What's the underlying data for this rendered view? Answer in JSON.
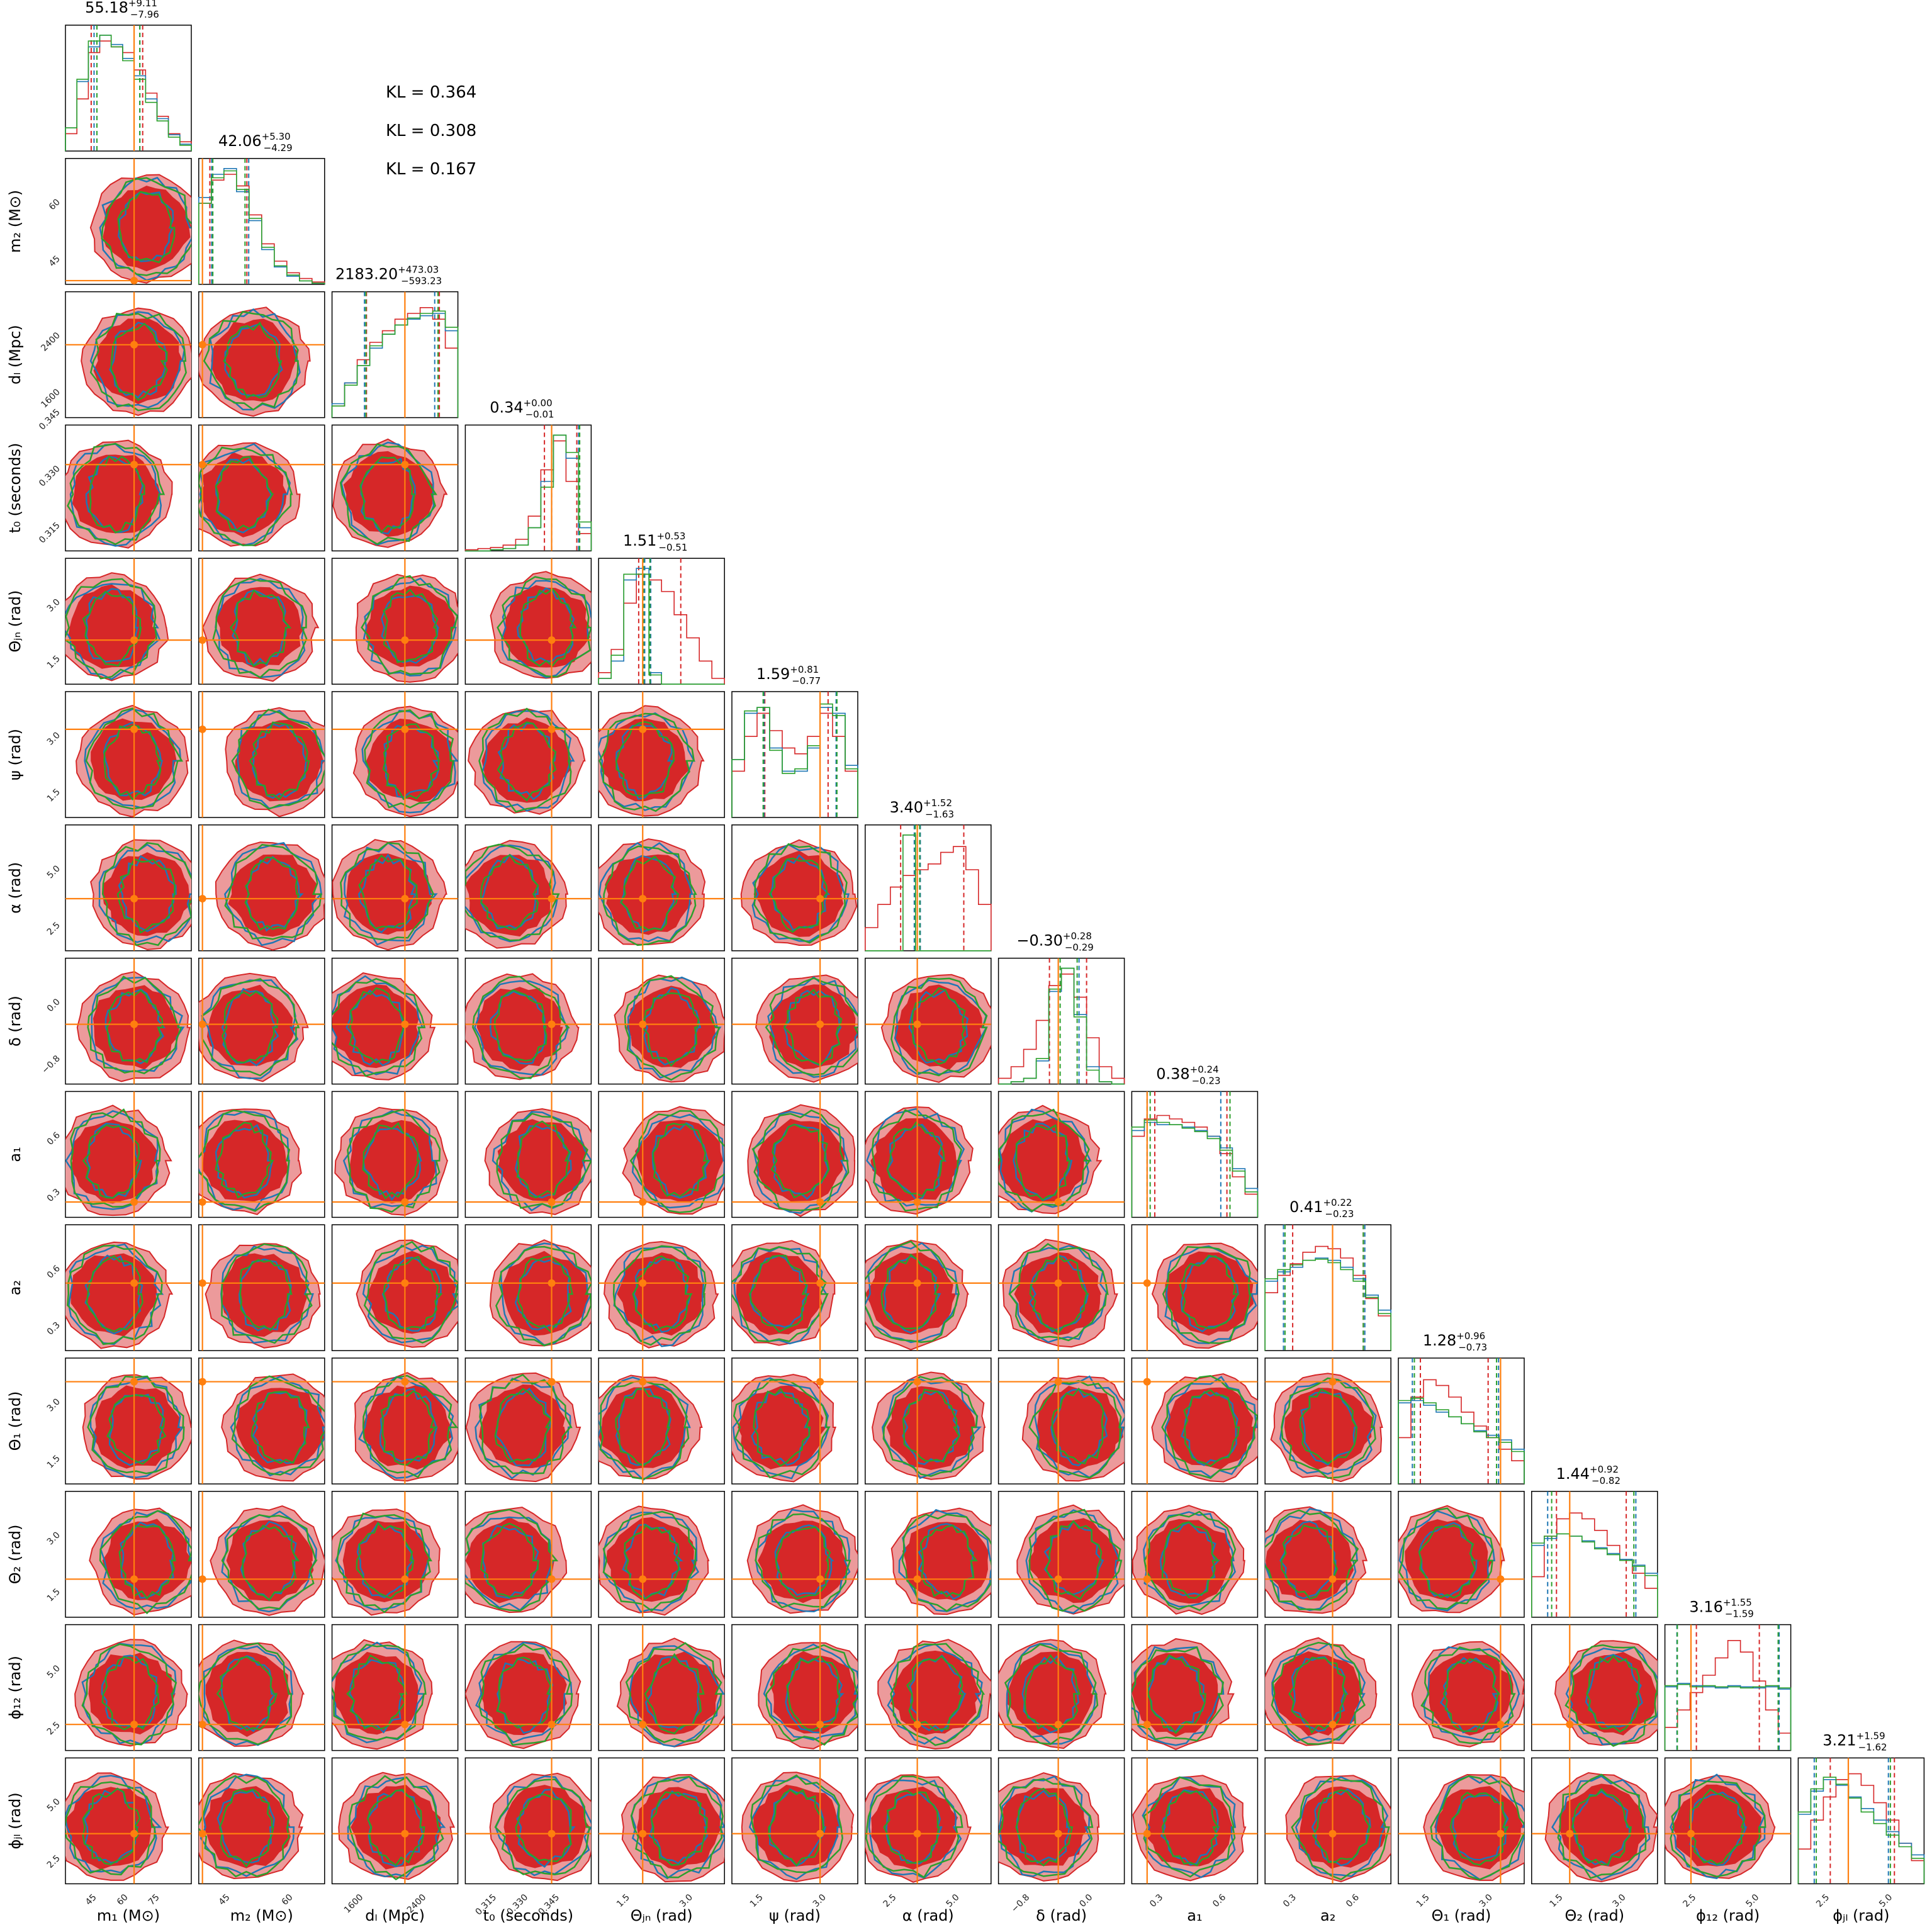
{
  "colors": {
    "red": "#d62728",
    "red_light": "#ec9a9b",
    "blue": "#1f77b4",
    "green": "#2ca02c",
    "orange": "#ff7f0e",
    "frame": "#000000"
  },
  "kl_labels": [
    "KL = 0.364",
    "KL = 0.308",
    "KL = 0.167"
  ],
  "chart_data": {
    "type": "corner",
    "series_colors": [
      "#d62728",
      "#1f77b4",
      "#2ca02c"
    ],
    "truth_color": "#ff7f0e",
    "parameters": [
      {
        "label": "m₁ (M⊙)",
        "left_label": "",
        "title_main": "55.18",
        "title_sup": "+9.11",
        "title_sub": "−7.96",
        "xticks": [
          "45",
          "60",
          "75"
        ],
        "yticks": [],
        "range": [
          38,
          82
        ],
        "truth": 62,
        "hist": {
          "red": [
            0.15,
            0.45,
            0.85,
            0.95,
            0.9,
            0.85,
            0.7,
            0.5,
            0.3,
            0.15,
            0.08
          ],
          "blue": [
            0.2,
            0.6,
            0.9,
            1.0,
            0.92,
            0.8,
            0.65,
            0.45,
            0.28,
            0.14,
            0.06
          ],
          "green": [
            0.2,
            0.62,
            0.95,
            1.0,
            0.9,
            0.78,
            0.62,
            0.42,
            0.26,
            0.12,
            0.05
          ]
        },
        "quantiles": {
          "red": [
            47,
            65
          ],
          "blue": [
            48,
            64
          ],
          "green": [
            49,
            64
          ]
        }
      },
      {
        "label": "m₂ (M⊙)",
        "left_label": "m₂ (M⊙)",
        "title_main": "42.06",
        "title_sup": "+5.30",
        "title_sub": "−4.29",
        "xticks": [
          "45",
          "60"
        ],
        "yticks": [
          "45",
          "60"
        ],
        "range": [
          34,
          68
        ],
        "truth": 35,
        "hist": {
          "red": [
            0.7,
            0.9,
            0.95,
            0.85,
            0.6,
            0.35,
            0.2,
            0.1,
            0.05,
            0.02
          ],
          "blue": [
            0.75,
            0.95,
            1.0,
            0.8,
            0.55,
            0.3,
            0.15,
            0.07,
            0.03,
            0.01
          ],
          "green": [
            0.7,
            0.92,
            0.98,
            0.82,
            0.57,
            0.32,
            0.16,
            0.08,
            0.03,
            0.01
          ]
        },
        "quantiles": {
          "red": [
            37,
            47
          ],
          "blue": [
            37.5,
            47.5
          ],
          "green": [
            37.8,
            46.5
          ]
        }
      },
      {
        "label": "dₗ (Mpc)",
        "left_label": "dₗ (Mpc)",
        "title_main": "2183.20",
        "title_sup": "+473.03",
        "title_sub": "−593.23",
        "xticks": [
          "1600",
          "2400"
        ],
        "yticks": [
          "1600",
          "2400"
        ],
        "range": [
          1100,
          3000
        ],
        "truth": 2200,
        "hist": {
          "red": [
            0.1,
            0.3,
            0.5,
            0.65,
            0.75,
            0.85,
            0.9,
            0.95,
            0.85,
            0.6
          ],
          "blue": [
            0.12,
            0.3,
            0.45,
            0.6,
            0.72,
            0.8,
            0.85,
            0.88,
            0.9,
            0.75
          ],
          "green": [
            0.1,
            0.28,
            0.45,
            0.62,
            0.72,
            0.8,
            0.86,
            0.9,
            0.92,
            0.78
          ]
        },
        "quantiles": {
          "red": [
            1620,
            2720
          ],
          "blue": [
            1590,
            2650
          ],
          "green": [
            1610,
            2700
          ]
        }
      },
      {
        "label": "t₀ (seconds)",
        "left_label": "t₀ (seconds)",
        "title_main": "0.34",
        "title_sup": "+0.00",
        "title_sub": "−0.01",
        "xticks": [
          "0.315",
          "0.330",
          "0.345"
        ],
        "yticks": [
          "0.315",
          "0.330",
          "0.345"
        ],
        "range": [
          0.315,
          0.35
        ],
        "truth": 0.339,
        "hist": {
          "red": [
            0.01,
            0.02,
            0.03,
            0.05,
            0.1,
            0.3,
            0.7,
            0.95,
            0.6,
            0.15
          ],
          "blue": [
            0.0,
            0.0,
            0.01,
            0.02,
            0.05,
            0.2,
            0.6,
            1.0,
            0.8,
            0.2
          ],
          "green": [
            0.0,
            0.0,
            0.01,
            0.02,
            0.05,
            0.2,
            0.55,
            1.0,
            0.85,
            0.25
          ]
        },
        "quantiles": {
          "red": [
            0.337,
            0.346
          ],
          "blue": [
            0.339,
            0.3465
          ],
          "green": [
            0.339,
            0.3468
          ]
        }
      },
      {
        "label": "Θⱼₙ (rad)",
        "left_label": "Θⱼₙ (rad)",
        "title_main": "1.51",
        "title_sup": "+0.53",
        "title_sub": "−0.51",
        "xticks": [
          "1.5",
          "3.0"
        ],
        "yticks": [
          "1.5",
          "3.0"
        ],
        "range": [
          0,
          3.14
        ],
        "truth": 1.1,
        "hist": {
          "red": [
            0.1,
            0.3,
            0.7,
            0.95,
            0.9,
            0.8,
            0.6,
            0.4,
            0.2,
            0.05
          ],
          "blue": [
            0.05,
            0.2,
            0.9,
            1.0,
            0.1,
            0.0,
            0.0,
            0.0,
            0.0,
            0.0
          ],
          "green": [
            0.05,
            0.25,
            0.95,
            0.95,
            0.08,
            0.0,
            0.0,
            0.0,
            0.0,
            0.0
          ]
        },
        "quantiles": {
          "red": [
            1.0,
            2.05
          ],
          "blue": [
            1.15,
            1.3
          ],
          "green": [
            1.12,
            1.28
          ]
        }
      },
      {
        "label": "ψ (rad)",
        "left_label": "ψ (rad)",
        "title_main": "1.59",
        "title_sup": "+0.81",
        "title_sub": "−0.77",
        "xticks": [
          "1.5",
          "3.0"
        ],
        "yticks": [
          "1.5",
          "3.0"
        ],
        "range": [
          0,
          3.14
        ],
        "truth": 2.2,
        "hist": {
          "red": [
            0.4,
            0.7,
            0.9,
            0.75,
            0.6,
            0.55,
            0.7,
            0.9,
            0.7,
            0.4
          ],
          "blue": [
            0.5,
            0.9,
            0.95,
            0.6,
            0.4,
            0.4,
            0.6,
            0.95,
            0.9,
            0.45
          ],
          "green": [
            0.5,
            0.92,
            0.95,
            0.58,
            0.38,
            0.42,
            0.62,
            0.98,
            0.88,
            0.42
          ]
        },
        "quantiles": {
          "red": [
            0.82,
            2.4
          ],
          "blue": [
            0.8,
            2.6
          ],
          "green": [
            0.78,
            2.62
          ]
        }
      },
      {
        "label": "α (rad)",
        "left_label": "α (rad)",
        "title_main": "3.40",
        "title_sup": "+1.52",
        "title_sub": "−1.63",
        "xticks": [
          "2.5",
          "5.0"
        ],
        "yticks": [
          "2.5",
          "5.0"
        ],
        "range": [
          0,
          6.28
        ],
        "truth": 2.6,
        "hist": {
          "red": [
            0.2,
            0.4,
            0.55,
            0.65,
            0.7,
            0.75,
            0.85,
            0.9,
            0.7,
            0.4
          ],
          "blue": [
            0.0,
            0.0,
            0.0,
            1.0,
            0.0,
            0.0,
            0.0,
            0.0,
            0.0,
            0.0
          ],
          "green": [
            0.0,
            0.0,
            0.0,
            1.0,
            0.0,
            0.0,
            0.0,
            0.0,
            0.0,
            0.0
          ]
        },
        "quantiles": {
          "red": [
            1.77,
            4.92
          ],
          "blue": [
            2.45,
            2.75
          ],
          "green": [
            2.5,
            2.72
          ]
        }
      },
      {
        "label": "δ (rad)",
        "left_label": "δ (rad)",
        "title_main": "−0.30",
        "title_sup": "+0.28",
        "title_sub": "−0.29",
        "xticks": [
          "−0.8",
          "0.0"
        ],
        "yticks": [
          "−0.8",
          "0.0"
        ],
        "range": [
          -1.4,
          0.6
        ],
        "truth": -0.45,
        "hist": {
          "red": [
            0.05,
            0.15,
            0.3,
            0.55,
            0.85,
            0.95,
            0.75,
            0.4,
            0.15,
            0.05
          ],
          "blue": [
            0.0,
            0.02,
            0.05,
            0.2,
            0.8,
            1.0,
            0.6,
            0.15,
            0.02,
            0.0
          ],
          "green": [
            0.0,
            0.02,
            0.05,
            0.22,
            0.82,
            1.0,
            0.58,
            0.12,
            0.02,
            0.0
          ]
        },
        "quantiles": {
          "red": [
            -0.59,
            0.0
          ],
          "blue": [
            -0.45,
            -0.12
          ],
          "green": [
            -0.42,
            -0.15
          ]
        }
      },
      {
        "label": "a₁",
        "left_label": "a₁",
        "title_main": "0.38",
        "title_sup": "+0.24",
        "title_sub": "−0.23",
        "xticks": [
          "0.3",
          "0.6"
        ],
        "yticks": [
          "0.3",
          "0.6"
        ],
        "range": [
          0,
          0.82
        ],
        "truth": 0.1,
        "hist": {
          "red": [
            0.7,
            0.85,
            0.88,
            0.85,
            0.82,
            0.78,
            0.7,
            0.55,
            0.35,
            0.2
          ],
          "blue": [
            0.75,
            0.82,
            0.8,
            0.8,
            0.78,
            0.75,
            0.7,
            0.6,
            0.42,
            0.25
          ],
          "green": [
            0.78,
            0.84,
            0.82,
            0.8,
            0.77,
            0.74,
            0.68,
            0.58,
            0.4,
            0.22
          ]
        },
        "quantiles": {
          "red": [
            0.15,
            0.62
          ],
          "blue": [
            0.1,
            0.58
          ],
          "green": [
            0.12,
            0.64
          ]
        }
      },
      {
        "label": "a₂",
        "left_label": "a₂",
        "title_main": "0.41",
        "title_sup": "+0.22",
        "title_sub": "−0.23",
        "xticks": [
          "0.3",
          "0.6"
        ],
        "yticks": [
          "0.3",
          "0.6"
        ],
        "range": [
          0,
          0.82
        ],
        "truth": 0.44,
        "hist": {
          "red": [
            0.5,
            0.65,
            0.75,
            0.85,
            0.9,
            0.88,
            0.8,
            0.65,
            0.45,
            0.3
          ],
          "blue": [
            0.6,
            0.68,
            0.72,
            0.78,
            0.8,
            0.78,
            0.72,
            0.62,
            0.48,
            0.35
          ],
          "green": [
            0.62,
            0.7,
            0.74,
            0.78,
            0.79,
            0.76,
            0.7,
            0.6,
            0.46,
            0.32
          ]
        },
        "quantiles": {
          "red": [
            0.18,
            0.64
          ],
          "blue": [
            0.12,
            0.65
          ],
          "green": [
            0.13,
            0.64
          ]
        }
      },
      {
        "label": "Θ₁ (rad)",
        "left_label": "Θ₁ (rad)",
        "title_main": "1.28",
        "title_sup": "+0.96",
        "title_sub": "−0.73",
        "xticks": [
          "1.5",
          "3.0"
        ],
        "yticks": [
          "1.5",
          "3.0"
        ],
        "range": [
          0,
          3.14
        ],
        "truth": 2.55,
        "hist": {
          "red": [
            0.4,
            0.75,
            0.9,
            0.85,
            0.75,
            0.62,
            0.5,
            0.4,
            0.3,
            0.2
          ],
          "blue": [
            0.7,
            0.72,
            0.68,
            0.62,
            0.58,
            0.52,
            0.46,
            0.42,
            0.38,
            0.3
          ],
          "green": [
            0.72,
            0.74,
            0.7,
            0.64,
            0.58,
            0.52,
            0.45,
            0.4,
            0.36,
            0.28
          ]
        },
        "quantiles": {
          "red": [
            0.55,
            2.24
          ],
          "blue": [
            0.35,
            2.5
          ],
          "green": [
            0.4,
            2.45
          ]
        }
      },
      {
        "label": "Θ₂ (rad)",
        "left_label": "Θ₂ (rad)",
        "title_main": "1.44",
        "title_sup": "+0.92",
        "title_sub": "−0.82",
        "xticks": [
          "1.5",
          "3.0"
        ],
        "yticks": [
          "1.5",
          "3.0"
        ],
        "range": [
          0,
          3.14
        ],
        "truth": 0.95,
        "hist": {
          "red": [
            0.35,
            0.7,
            0.85,
            0.9,
            0.85,
            0.75,
            0.62,
            0.5,
            0.38,
            0.25
          ],
          "blue": [
            0.62,
            0.68,
            0.72,
            0.7,
            0.66,
            0.6,
            0.55,
            0.5,
            0.45,
            0.38
          ],
          "green": [
            0.64,
            0.7,
            0.72,
            0.7,
            0.65,
            0.59,
            0.54,
            0.49,
            0.44,
            0.36
          ]
        },
        "quantiles": {
          "red": [
            0.62,
            2.36
          ],
          "blue": [
            0.4,
            2.6
          ],
          "green": [
            0.5,
            2.55
          ]
        }
      },
      {
        "label": "ϕ₁₂ (rad)",
        "left_label": "ϕ₁₂ (rad)",
        "title_main": "3.16",
        "title_sup": "+1.55",
        "title_sub": "−1.59",
        "xticks": [
          "2.5",
          "5.0"
        ],
        "yticks": [
          "2.5",
          "5.0"
        ],
        "range": [
          0,
          6.28
        ],
        "truth": 1.3,
        "hist": {
          "red": [
            0.2,
            0.35,
            0.5,
            0.65,
            0.8,
            0.95,
            0.85,
            0.6,
            0.35,
            0.15
          ],
          "blue": [
            0.55,
            0.58,
            0.56,
            0.55,
            0.54,
            0.56,
            0.55,
            0.54,
            0.55,
            0.53
          ],
          "green": [
            0.56,
            0.57,
            0.55,
            0.56,
            0.55,
            0.55,
            0.54,
            0.55,
            0.56,
            0.54
          ]
        },
        "quantiles": {
          "red": [
            1.57,
            4.71
          ],
          "blue": [
            0.6,
            5.7
          ],
          "green": [
            0.62,
            5.65
          ]
        }
      },
      {
        "label": "ϕⱼₗ (rad)",
        "left_label": "ϕⱼₗ (rad)",
        "title_main": "3.21",
        "title_sup": "+1.59",
        "title_sub": "−1.62",
        "xticks": [
          "2.5",
          "5.0"
        ],
        "yticks": [
          "2.5",
          "5.0"
        ],
        "range": [
          0,
          6.28
        ],
        "truth": 2.5,
        "hist": {
          "red": [
            0.3,
            0.55,
            0.75,
            0.9,
            0.95,
            0.85,
            0.7,
            0.55,
            0.35,
            0.2
          ],
          "blue": [
            0.6,
            0.8,
            0.9,
            0.85,
            0.75,
            0.65,
            0.55,
            0.45,
            0.35,
            0.25
          ],
          "green": [
            0.62,
            0.82,
            0.92,
            0.86,
            0.74,
            0.62,
            0.52,
            0.42,
            0.32,
            0.22
          ]
        },
        "quantiles": {
          "red": [
            1.6,
            4.8
          ],
          "blue": [
            0.8,
            4.5
          ],
          "green": [
            0.9,
            4.6
          ]
        }
      }
    ]
  }
}
